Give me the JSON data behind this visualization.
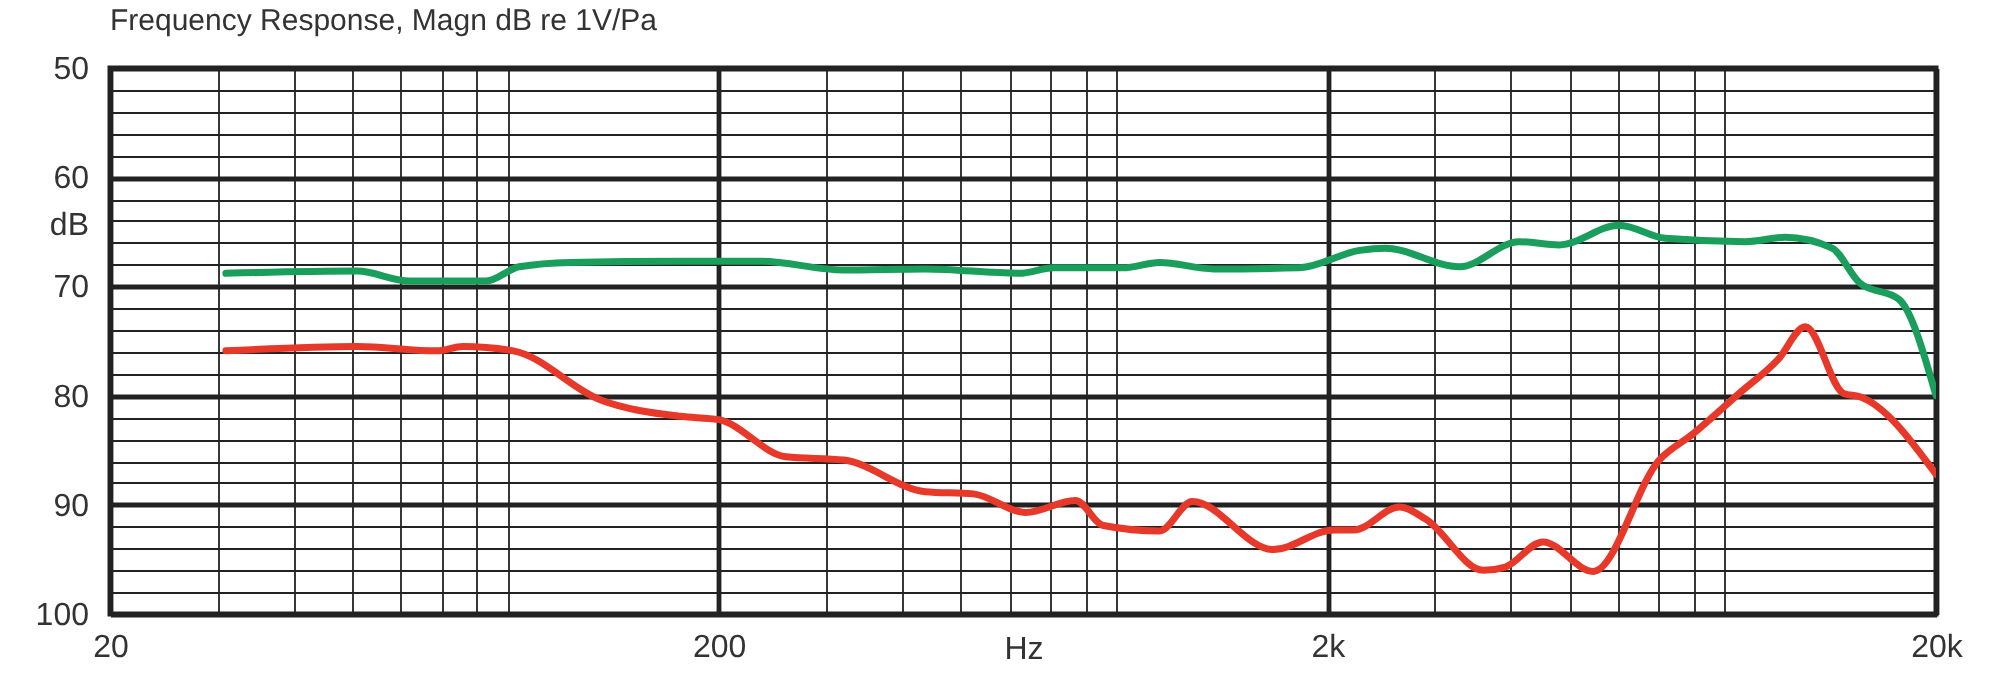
{
  "chart_data": {
    "type": "line",
    "title": "Frequency Response, Magn  dB re 1V/Pa",
    "xlabel": "Hz",
    "ylabel": "dB",
    "log": "x",
    "grid": true,
    "line_style": "solid",
    "xlim": [
      20,
      20000
    ],
    "ylim": [
      100,
      50
    ],
    "xticks": [
      20,
      {
        "value": 30,
        "label": null
      },
      {
        "value": 40,
        "label": null
      },
      {
        "value": 50,
        "label": null
      },
      {
        "value": 60,
        "label": null
      },
      {
        "value": 70,
        "label": null
      },
      {
        "value": 80,
        "label": null
      },
      {
        "value": 90,
        "label": null
      },
      200,
      {
        "value": 300,
        "label": null
      },
      {
        "value": 400,
        "label": null
      },
      {
        "value": 500,
        "label": null
      },
      {
        "value": 600,
        "label": null
      },
      {
        "value": 700,
        "label": null
      },
      {
        "value": 800,
        "label": null
      },
      {
        "value": 900,
        "label": null
      },
      {
        "value": 2000,
        "label": "2k"
      },
      {
        "value": 3000,
        "label": null
      },
      {
        "value": 4000,
        "label": null
      },
      {
        "value": 5000,
        "label": null
      },
      {
        "value": 6000,
        "label": null
      },
      {
        "value": 7000,
        "label": null
      },
      {
        "value": 8000,
        "label": null
      },
      {
        "value": 9000,
        "label": null
      },
      {
        "value": 20000,
        "label": "20k"
      }
    ],
    "yticks": [
      50,
      {
        "value": 52,
        "label": null
      },
      {
        "value": 54,
        "label": null
      },
      {
        "value": 56,
        "label": null
      },
      {
        "value": 58,
        "label": null
      },
      60,
      {
        "value": 62,
        "label": null
      },
      {
        "value": 64,
        "label": null
      },
      {
        "value": 66,
        "label": null
      },
      {
        "value": 68,
        "label": null
      },
      70,
      {
        "value": 72,
        "label": null
      },
      {
        "value": 74,
        "label": null
      },
      {
        "value": 76,
        "label": null
      },
      {
        "value": 78,
        "label": null
      },
      80,
      {
        "value": 82,
        "label": null
      },
      {
        "value": 84,
        "label": null
      },
      {
        "value": 86,
        "label": null
      },
      {
        "value": 88,
        "label": null
      },
      90,
      {
        "value": 92,
        "label": null
      },
      {
        "value": 94,
        "label": null
      },
      {
        "value": 96,
        "label": null
      },
      {
        "value": 98,
        "label": null
      },
      100
    ],
    "series": [
      {
        "color": "#1a9e5c",
        "x": [
          31,
          51,
          62,
          83,
          94,
          114,
          173,
          234,
          321,
          437,
          624,
          710,
          924,
          1060,
          1300,
          1800,
          2260,
          2490,
          3300,
          4130,
          4810,
          6030,
          7180,
          9720,
          11300,
          13500,
          15000,
          17400,
          20000
        ],
        "values": [
          68.8,
          68.6,
          69.5,
          69.5,
          68.2,
          67.8,
          67.7,
          67.7,
          68.5,
          68.4,
          68.8,
          68.3,
          68.3,
          67.8,
          68.4,
          68.3,
          66.7,
          66.5,
          68.2,
          65.9,
          66.2,
          64.4,
          65.6,
          65.9,
          65.5,
          66.5,
          69.7,
          71.2,
          80
        ]
      },
      {
        "color": "#e8382a",
        "x": [
          31,
          51,
          69,
          76,
          92,
          128,
          173,
          200,
          258,
          321,
          437,
          524,
          639,
          771,
          857,
          1060,
          1200,
          1630,
          2050,
          2210,
          2630,
          2900,
          3610,
          3920,
          4520,
          5470,
          7020,
          7980,
          9500,
          11000,
          12200,
          14100,
          15000,
          20000
        ],
        "values": [
          75.9,
          75.5,
          75.9,
          75.5,
          75.9,
          80.4,
          81.9,
          82.2,
          85.6,
          85.9,
          88.8,
          89,
          90.7,
          89.6,
          91.9,
          92.4,
          89.7,
          94.1,
          92.3,
          92.3,
          90.2,
          91.3,
          96,
          95.7,
          93.4,
          96.1,
          85.9,
          83.5,
          79.8,
          76.7,
          73.7,
          79.8,
          80.1,
          87.2
        ]
      }
    ]
  }
}
